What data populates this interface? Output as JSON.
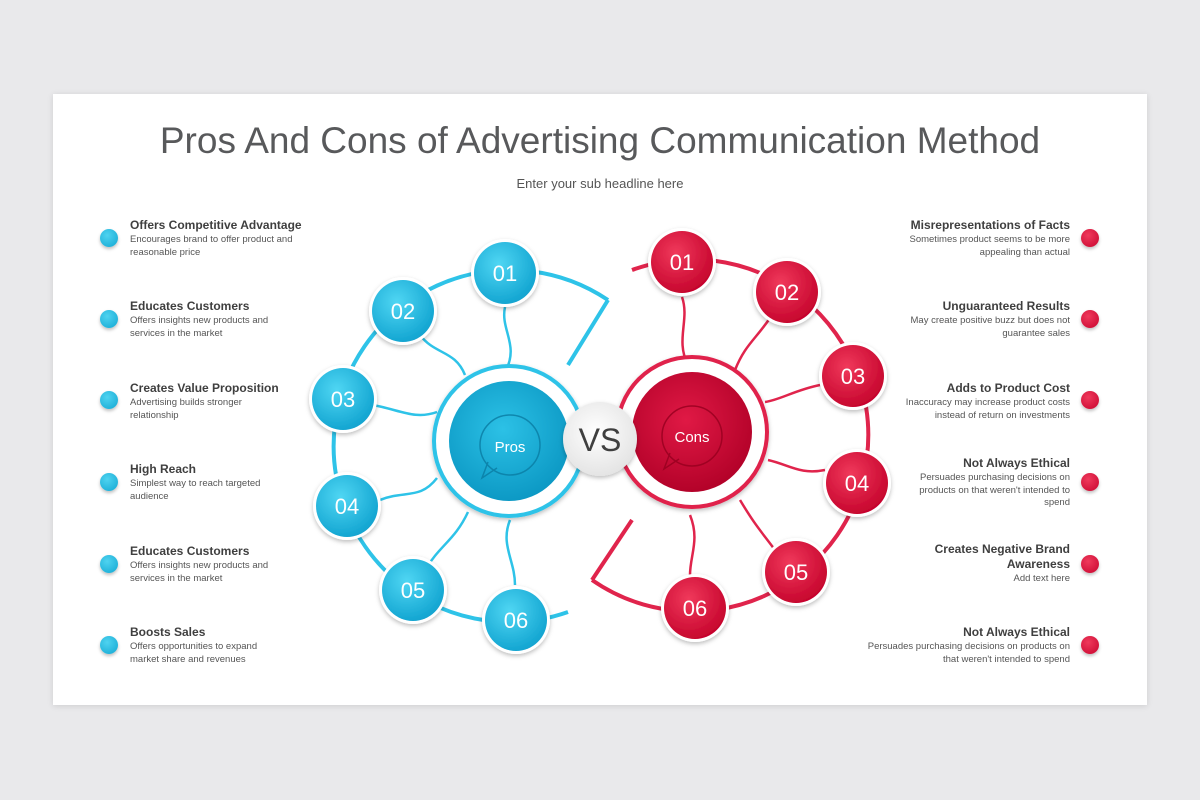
{
  "slide": {
    "title": "Pros And Cons of Advertising Communication Method",
    "subtitle": "Enter your sub headline here"
  },
  "colors": {
    "pros": "#1aaad6",
    "cons": "#d50a35",
    "text": "#3f3f3f"
  },
  "center": {
    "pros_label": "Pros",
    "cons_label": "Cons",
    "vs_label": "VS"
  },
  "pros_nodes": [
    "01",
    "02",
    "03",
    "04",
    "05",
    "06"
  ],
  "cons_nodes": [
    "01",
    "02",
    "03",
    "04",
    "05",
    "06"
  ],
  "pros_items": [
    {
      "title": "Offers Competitive Advantage",
      "desc1": "Encourages brand to offer product and",
      "desc2": "reasonable price"
    },
    {
      "title": "Educates Customers",
      "desc1": "Offers insights new products and",
      "desc2": "services in the market"
    },
    {
      "title": "Creates Value Proposition",
      "desc1": "Advertising builds stronger",
      "desc2": "relationship"
    },
    {
      "title": "High Reach",
      "desc1": "Simplest way to reach targeted",
      "desc2": "audience"
    },
    {
      "title": "Educates Customers",
      "desc1": "Offers insights new products and",
      "desc2": "services in the market"
    },
    {
      "title": "Boosts Sales",
      "desc1": "Offers opportunities to expand",
      "desc2": "market share and revenues"
    }
  ],
  "cons_items": [
    {
      "title": "Misrepresentations of Facts",
      "desc1": "Sometimes product seems to be more",
      "desc2": "appealing than actual"
    },
    {
      "title": "Unguaranteed Results",
      "desc1": "May create positive buzz but does not",
      "desc2": "guarantee sales"
    },
    {
      "title": "Adds to Product Cost",
      "desc1": "Inaccuracy may increase product costs",
      "desc2": "instead of return on investments"
    },
    {
      "title": "Not Always Ethical",
      "desc1": "Persuades purchasing decisions on",
      "desc2": "products on that weren't intended to",
      "desc3": "spend"
    },
    {
      "title": "Creates Negative Brand",
      "title2": "Awareness",
      "desc1": "Add text here"
    },
    {
      "title": "Not Always Ethical",
      "desc1": "Persuades purchasing decisions on products on",
      "desc2": "that weren't intended to spend"
    }
  ]
}
